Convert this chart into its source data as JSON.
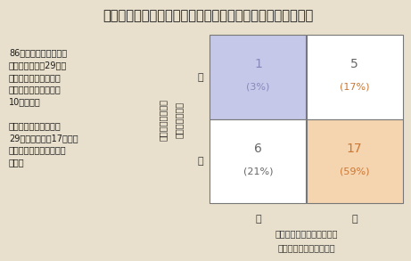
{
  "title": "図表２：技術が「模倣されず」持続的に業績に結びつく理由",
  "background_color": "#e8e0cc",
  "title_fontsize": 10.5,
  "body_text_line1": "86の成功しているコア",
  "body_text_line2": "技術から、更に29の特",
  "body_text_line3": "に成功している技術を",
  "body_text_line4": "選択（業績への貢献が",
  "body_text_line5": "10点満点）",
  "body_text_line6": "",
  "body_text_line7": "大きな成功に貢献した",
  "body_text_line8": "29の技術の中で17は「組",
  "body_text_line9": "織能力の積み重ね」のみ",
  "body_text_line10": "が源泉",
  "cells": {
    "top_left": {
      "value": "1",
      "pct": "(3%)",
      "value_color": "#8888bb",
      "pct_color": "#8888bb",
      "bg": "#c5c8e8"
    },
    "top_right": {
      "value": "5",
      "pct": "(17%)",
      "value_color": "#666666",
      "pct_color": "#cc7733",
      "bg": "#ffffff"
    },
    "bottom_left": {
      "value": "6",
      "pct": "(21%)",
      "value_color": "#666666",
      "pct_color": "#666666",
      "bg": "#ffffff"
    },
    "bottom_right": {
      "value": "17",
      "pct": "(59%)",
      "value_color": "#cc7733",
      "pct_color": "#cc7733",
      "bg": "#f5d5b0"
    }
  },
  "y_label_high": "高",
  "y_label_low": "低",
  "y_title1": "特許・業界標準",
  "y_title2": "（獲得した権利）",
  "x_label_low": "低",
  "x_label_high": "高",
  "x_title1": "蓄積したノウハウ・経験知",
  "x_title2": "（組織能力の積み重ね）",
  "cell_value_fontsize": 10,
  "cell_pct_fontsize": 8,
  "axis_label_fontsize": 8,
  "axis_title_fontsize": 7,
  "body_fontsize": 7
}
